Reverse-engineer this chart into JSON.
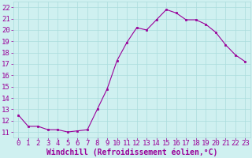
{
  "x": [
    0,
    1,
    2,
    3,
    4,
    5,
    6,
    7,
    8,
    9,
    10,
    11,
    12,
    13,
    14,
    15,
    16,
    17,
    18,
    19,
    20,
    21,
    22,
    23
  ],
  "y": [
    12.5,
    11.5,
    11.5,
    11.2,
    11.2,
    11.0,
    11.1,
    11.2,
    13.0,
    14.8,
    17.3,
    18.9,
    20.2,
    20.0,
    20.9,
    21.8,
    21.5,
    20.9,
    20.9,
    20.5,
    19.8,
    18.7,
    17.8,
    17.2
  ],
  "line_color": "#990099",
  "marker": "s",
  "marker_size": 2,
  "bg_color": "#cff0f0",
  "grid_color": "#aadddd",
  "xlabel": "Windchill (Refroidissement éolien,°C)",
  "xlabel_color": "#990099",
  "xlabel_fontsize": 7,
  "ylabel_ticks": [
    11,
    12,
    13,
    14,
    15,
    16,
    17,
    18,
    19,
    20,
    21,
    22
  ],
  "xlim": [
    -0.5,
    23.5
  ],
  "ylim": [
    10.5,
    22.5
  ],
  "tick_fontsize": 6.5,
  "tick_color": "#990099",
  "linewidth": 0.8
}
